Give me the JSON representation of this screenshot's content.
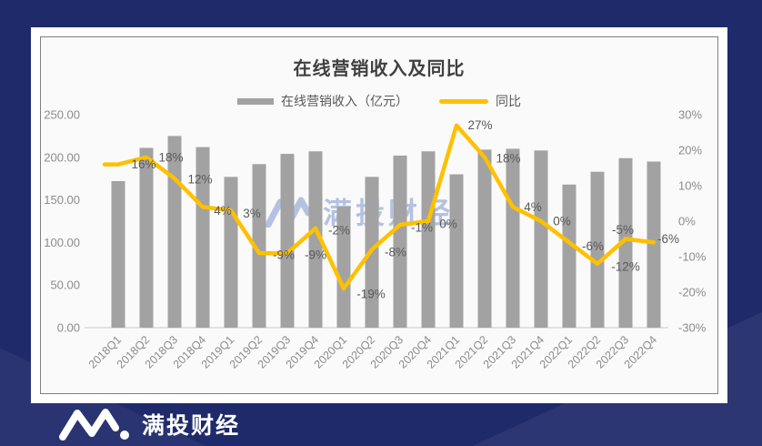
{
  "brand": {
    "name": "满投财经"
  },
  "watermark": {
    "text": "满投财经"
  },
  "chart_data": {
    "type": "bar+line combo",
    "title": "在线营销收入及同比",
    "categories": [
      "2018Q1",
      "2018Q2",
      "2018Q3",
      "2018Q4",
      "2019Q1",
      "2019Q2",
      "2019Q3",
      "2019Q4",
      "2020Q1",
      "2020Q2",
      "2020Q3",
      "2020Q4",
      "2021Q1",
      "2021Q2",
      "2021Q3",
      "2021Q4",
      "2022Q1",
      "2022Q2",
      "2022Q3",
      "2022Q4"
    ],
    "series": [
      {
        "name": "在线营销收入（亿元）",
        "type": "bar",
        "color": "#a2a2a2",
        "axis": "left",
        "values": [
          172,
          211,
          225,
          212,
          177,
          192,
          204,
          207,
          142,
          177,
          202,
          207,
          180,
          209,
          210,
          208,
          168,
          183,
          199,
          195
        ]
      },
      {
        "name": "同比",
        "type": "line",
        "color": "#FFC000",
        "axis": "right",
        "unit": "%",
        "values": [
          16,
          18,
          12,
          4,
          3,
          -9,
          -9,
          -2,
          -19,
          -8,
          -1,
          0,
          27,
          18,
          4,
          0,
          -6,
          -12,
          -5,
          -6
        ]
      }
    ],
    "left_axis": {
      "min": 0,
      "max": 250,
      "ticks": [
        "250.00",
        "200.00",
        "150.00",
        "100.00",
        "50.00",
        "0.00"
      ]
    },
    "right_axis": {
      "min": -30,
      "max": 30,
      "ticks": [
        "30%",
        "20%",
        "10%",
        "0%",
        "-10%",
        "-20%",
        "-30%"
      ]
    },
    "legend_position": "top",
    "grid": false,
    "colors": {
      "bar": "#a2a2a2",
      "line": "#FFC000",
      "axis_text": "#8c8c8c",
      "data_label": "#595959",
      "axis_line": "#d9d9d9"
    }
  }
}
